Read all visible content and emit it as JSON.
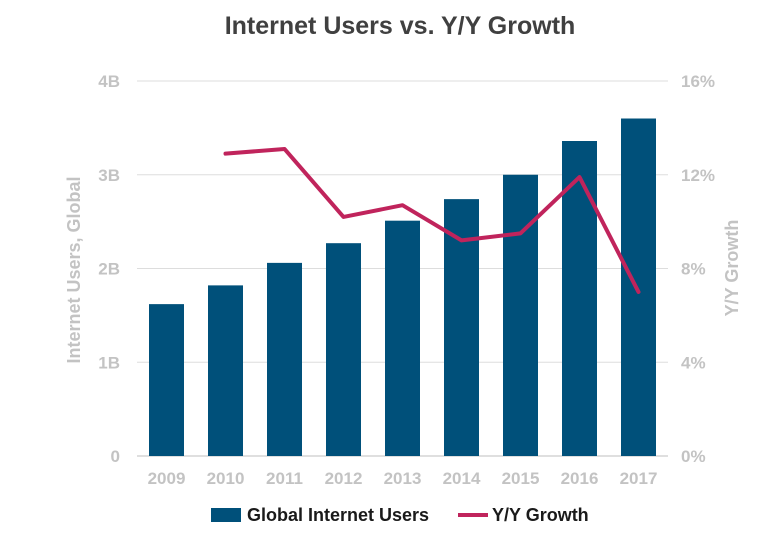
{
  "chart_data": {
    "type": "bar",
    "title": "Internet Users vs. Y/Y Growth",
    "categories": [
      "2009",
      "2010",
      "2011",
      "2012",
      "2013",
      "2014",
      "2015",
      "2016",
      "2017"
    ],
    "ylabel": "Internet Users, Global",
    "y2label": "Y/Y Growth",
    "ylim": [
      0,
      4
    ],
    "y2lim": [
      0,
      16
    ],
    "yticks": [
      "0",
      "1B",
      "2B",
      "3B",
      "4B"
    ],
    "y2ticks": [
      "0%",
      "4%",
      "8%",
      "12%",
      "16%"
    ],
    "grid": true,
    "legend_position": "bottom",
    "series": [
      {
        "name": "Global Internet Users",
        "kind": "bar",
        "axis": "left",
        "unit": "billions",
        "color": "#00507a",
        "values": [
          1.62,
          1.82,
          2.06,
          2.27,
          2.51,
          2.74,
          3.0,
          3.36,
          3.6
        ]
      },
      {
        "name": "Y/Y Growth",
        "kind": "line",
        "axis": "right",
        "unit": "percent",
        "color": "#c0245c",
        "values": [
          null,
          12.9,
          13.1,
          10.2,
          10.7,
          9.2,
          9.5,
          11.9,
          7.0
        ]
      }
    ]
  }
}
